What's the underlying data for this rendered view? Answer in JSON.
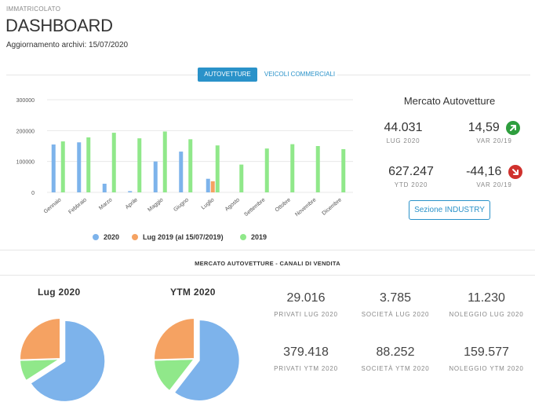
{
  "header": {
    "kicker": "IMMATRICOLATO",
    "title": "DASHBOARD",
    "updated": "Aggiornamento archivi: 15/07/2020"
  },
  "tabs": [
    {
      "label": "AUTOVETTURE",
      "active": true
    },
    {
      "label": "VEICOLI COMMERCIALI",
      "active": false
    }
  ],
  "colors": {
    "primary": "#2a92c9",
    "series_2020": "#7db3eb",
    "series_lug2019": "#f5a262",
    "series_2019": "#90e88a",
    "positive": "#2e9e3e",
    "negative": "#d0312d"
  },
  "chart_data": [
    {
      "type": "bar",
      "categories": [
        "Gennaio",
        "Febbraio",
        "Marzo",
        "Aprile",
        "Maggio",
        "Giugno",
        "Luglio",
        "Agosto",
        "Settembre",
        "Ottobre",
        "Novembre",
        "Dicembre"
      ],
      "series": [
        {
          "name": "2020",
          "values": [
            155000,
            162000,
            28000,
            4000,
            100000,
            132000,
            44000,
            null,
            null,
            null,
            null,
            null
          ]
        },
        {
          "name": "Lug 2019 (al 15/07/2019)",
          "values": [
            null,
            null,
            null,
            null,
            null,
            null,
            36000,
            null,
            null,
            null,
            null,
            null
          ]
        },
        {
          "name": "2019",
          "values": [
            165000,
            178000,
            193000,
            175000,
            197000,
            172000,
            152000,
            90000,
            142000,
            156000,
            150000,
            140000
          ]
        }
      ],
      "yticks": [
        "300000",
        "200000",
        "100000",
        "0"
      ],
      "ylim": [
        0,
        300000
      ],
      "legend": "bottom",
      "grid": true
    },
    {
      "type": "pie",
      "title": "Lug 2020",
      "labels": [
        "Privati",
        "Società",
        "Noleggio"
      ],
      "values": [
        29016,
        3785,
        11230
      ],
      "colors": [
        "#7db3eb",
        "#90e88a",
        "#f5a262"
      ]
    },
    {
      "type": "pie",
      "title": "YTM 2020",
      "labels": [
        "Privati",
        "Società",
        "Noleggio"
      ],
      "values": [
        379418,
        88252,
        159577
      ],
      "colors": [
        "#7db3eb",
        "#90e88a",
        "#f5a262"
      ]
    }
  ],
  "market": {
    "title": "Mercato Autovetture",
    "month_value": "44.031",
    "month_label": "LUG 2020",
    "var_month_value": "14,59",
    "var_month_label": "VAR 20/19",
    "ytd_value": "627.247",
    "ytd_label": "YTD 2020",
    "var_ytd_value": "-44,16",
    "var_ytd_label": "VAR 20/19",
    "up_icon": "arrow-up-right-icon",
    "down_icon": "arrow-down-right-icon",
    "industry_button": "Sezione INDUSTRY"
  },
  "channels": {
    "title": "MERCATO AUTOVETTURE - CANALI DI VENDITA",
    "pie1_title": "Lug 2020",
    "pie2_title": "YTM 2020",
    "stats": [
      {
        "value": "29.016",
        "label": "PRIVATI LUG 2020"
      },
      {
        "value": "3.785",
        "label": "SOCIETÀ LUG 2020"
      },
      {
        "value": "11.230",
        "label": "NOLEGGIO LUG 2020"
      },
      {
        "value": "379.418",
        "label": "PRIVATI YTM 2020"
      },
      {
        "value": "88.252",
        "label": "SOCIETÀ YTM 2020"
      },
      {
        "value": "159.577",
        "label": "NOLEGGIO YTM 2020"
      }
    ]
  }
}
